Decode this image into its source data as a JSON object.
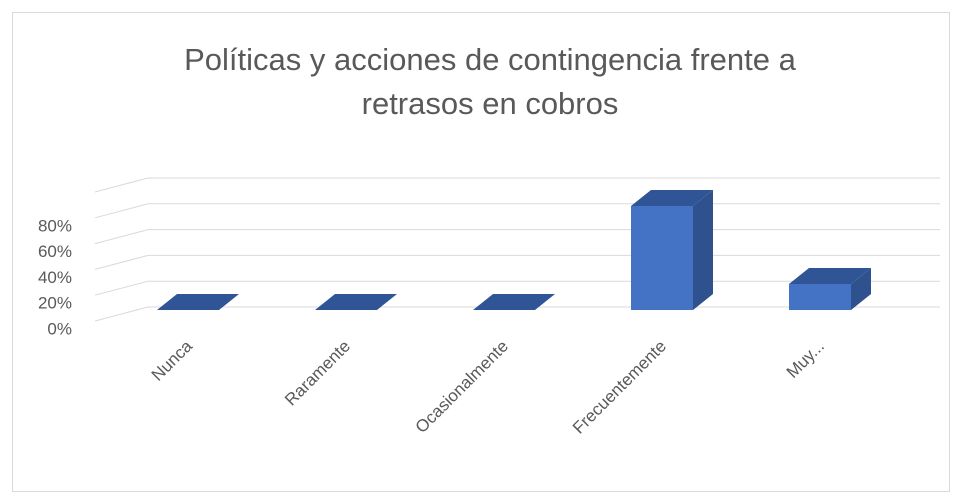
{
  "chart_data": {
    "type": "bar3d",
    "title": "Políticas y acciones de contingencia frente a retrasos en cobros",
    "categories": [
      "Nunca",
      "Raramente",
      "Ocasionalmente",
      "Frecuentemente",
      "Muy..."
    ],
    "values": [
      0,
      0,
      0,
      80,
      20
    ],
    "color": "#4472c4",
    "ylim": [
      0,
      100
    ],
    "yticks": [
      {
        "value": 0,
        "label": "0%"
      },
      {
        "value": 20,
        "label": "20%"
      },
      {
        "value": 40,
        "label": "40%"
      },
      {
        "value": 60,
        "label": "60%"
      },
      {
        "value": 80,
        "label": "80%"
      }
    ],
    "grid": true
  }
}
